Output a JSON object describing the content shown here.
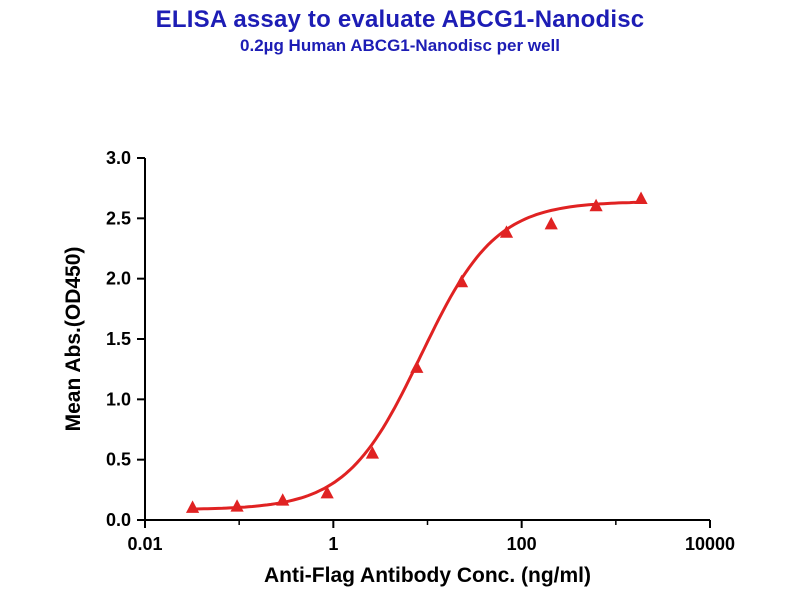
{
  "chart_data": {
    "type": "scatter",
    "title": "ELISA assay to evaluate ABCG1-Nanodisc",
    "subtitle": "0.2µg Human ABCG1-Nanodisc per well",
    "xlabel": "Anti-Flag Antibody Conc. (ng/ml)",
    "ylabel": "Mean Abs.(OD450)",
    "x_scale": "log10",
    "xlim": [
      0.01,
      10000
    ],
    "ylim": [
      0.0,
      3.0
    ],
    "x_ticks": [
      0.01,
      1,
      100,
      10000
    ],
    "x_tick_labels": [
      "0.01",
      "1",
      "100",
      "10000"
    ],
    "x_minor_ticks": [
      0.1,
      10,
      1000
    ],
    "y_ticks": [
      0.0,
      0.5,
      1.0,
      1.5,
      2.0,
      2.5,
      3.0
    ],
    "y_tick_labels": [
      "0.0",
      "0.5",
      "1.0",
      "1.5",
      "2.0",
      "2.5",
      "3.0"
    ],
    "grid": false,
    "legend": "none",
    "series": [
      {
        "name": "ABCG1-Nanodisc",
        "marker": "triangle",
        "points": [
          {
            "x": 0.032,
            "y": 0.1
          },
          {
            "x": 0.095,
            "y": 0.11
          },
          {
            "x": 0.29,
            "y": 0.16
          },
          {
            "x": 0.86,
            "y": 0.22
          },
          {
            "x": 2.6,
            "y": 0.55
          },
          {
            "x": 7.7,
            "y": 1.26
          },
          {
            "x": 23,
            "y": 1.97
          },
          {
            "x": 69,
            "y": 2.38
          },
          {
            "x": 206,
            "y": 2.45
          },
          {
            "x": 617,
            "y": 2.6
          },
          {
            "x": 1852,
            "y": 2.66
          }
        ],
        "fit": {
          "type": "4PL",
          "bottom": 0.085,
          "top": 2.64,
          "ec50": 8.5,
          "hill": 1.1
        }
      }
    ]
  },
  "colors": {
    "title": "#1d1db5",
    "series": "#e02222",
    "axis": "#000000",
    "background": "#ffffff"
  }
}
